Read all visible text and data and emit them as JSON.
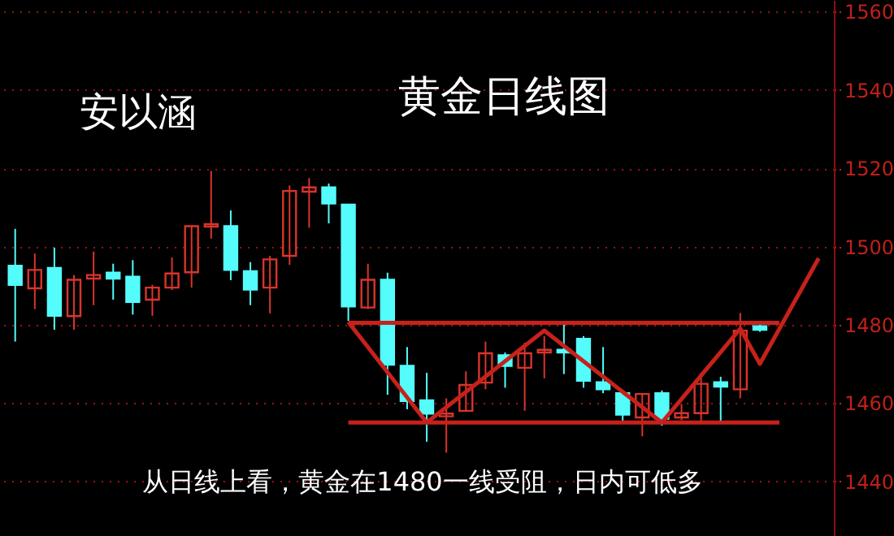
{
  "chart_data": {
    "type": "candlestick",
    "title": "黄金日线图",
    "annotations": [
      "安以涵",
      "从日线上看，黄金在1480一线受阻，日内可低多"
    ],
    "categories": [
      null,
      null,
      null,
      null,
      null,
      null,
      null,
      null,
      null,
      null,
      null,
      null,
      null,
      null,
      null,
      null,
      null,
      null,
      null,
      null,
      null,
      null,
      null,
      null,
      null,
      null,
      null,
      null,
      null,
      null,
      null,
      null,
      null,
      null,
      null,
      null,
      null,
      null,
      null,
      null,
      null,
      null
    ],
    "ohlc": [
      [
        1495.1,
        1504.5,
        1475.7,
        1490.2
      ],
      [
        1489.3,
        1498.2,
        1484.0,
        1494.0
      ],
      [
        1494.5,
        1499.7,
        1478.7,
        1482.3
      ],
      [
        1482.2,
        1492.7,
        1478.7,
        1491.5
      ],
      [
        1491.8,
        1498.7,
        1485.0,
        1492.7
      ],
      [
        1493.3,
        1495.6,
        1486.4,
        1491.8
      ],
      [
        1492.3,
        1496.5,
        1482.6,
        1485.8
      ],
      [
        1486.4,
        1490.2,
        1482.3,
        1489.5
      ],
      [
        1489.5,
        1497.2,
        1488.9,
        1493.1
      ],
      [
        1493.4,
        1505.2,
        1489.5,
        1505.2
      ],
      [
        1505.1,
        1519.3,
        1502.0,
        1505.7
      ],
      [
        1505.2,
        1509.2,
        1491.4,
        1494.0
      ],
      [
        1493.7,
        1496.0,
        1485.0,
        1489.0
      ],
      [
        1489.5,
        1497.6,
        1482.9,
        1496.7
      ],
      [
        1497.6,
        1515.6,
        1495.3,
        1514.2
      ],
      [
        1514.0,
        1517.5,
        1504.8,
        1515.1
      ],
      [
        1515.1,
        1516.1,
        1505.9,
        1511.0
      ],
      [
        1510.7,
        1510.7,
        1481.0,
        1484.7
      ],
      [
        1484.4,
        1495.6,
        1484.0,
        1491.5
      ],
      [
        1491.5,
        1493.3,
        1462.1,
        1469.8
      ],
      [
        1469.5,
        1474.3,
        1458.4,
        1460.5
      ],
      [
        1460.7,
        1467.7,
        1450.1,
        1457.3
      ],
      [
        1456.6,
        1461.2,
        1447.3,
        1457.3
      ],
      [
        1458.0,
        1468.1,
        1457.7,
        1464.6
      ],
      [
        1465.2,
        1475.7,
        1463.5,
        1472.7
      ],
      [
        1472.2,
        1472.9,
        1463.9,
        1469.5
      ],
      [
        1469.0,
        1475.4,
        1458.0,
        1472.7
      ],
      [
        1472.9,
        1477.1,
        1466.3,
        1473.6
      ],
      [
        1473.6,
        1480.0,
        1467.4,
        1472.9
      ],
      [
        1476.4,
        1477.1,
        1463.9,
        1465.7
      ],
      [
        1465.3,
        1474.3,
        1462.5,
        1463.5
      ],
      [
        1462.5,
        1463.2,
        1455.2,
        1457.0
      ],
      [
        1456.3,
        1462.3,
        1451.5,
        1462.3
      ],
      [
        1462.5,
        1463.2,
        1454.2,
        1456.0
      ],
      [
        1456.3,
        1459.8,
        1455.6,
        1457.4
      ],
      [
        1457.4,
        1467.7,
        1455.2,
        1464.9
      ],
      [
        1465.3,
        1466.7,
        1455.2,
        1464.2
      ],
      [
        1463.5,
        1483.0,
        1461.2,
        1478.5
      ],
      [
        1479.6,
        1480.0,
        1478.2,
        1478.7
      ],
      null,
      null,
      null
    ],
    "colors": [
      "#54fcfc",
      "#d9342c",
      "#54fcfc",
      "#d9342c",
      "#d9342c",
      "#54fcfc",
      "#54fcfc",
      "#d9342c",
      "#d9342c",
      "#d9342c",
      "#d9342c",
      "#54fcfc",
      "#54fcfc",
      "#d9342c",
      "#d9342c",
      "#d9342c",
      "#54fcfc",
      "#54fcfc",
      "#d9342c",
      "#54fcfc",
      "#54fcfc",
      "#54fcfc",
      "#d9342c",
      "#d9342c",
      "#d9342c",
      "#54fcfc",
      "#d9342c",
      "#d9342c",
      "#54fcfc",
      "#54fcfc",
      "#54fcfc",
      "#54fcfc",
      "#d9342c",
      "#54fcfc",
      "#d9342c",
      "#d9342c",
      "#54fcfc",
      "#d9342c",
      "#54fcfc",
      null,
      null,
      null
    ],
    "series": [
      {
        "type": "line",
        "color": "#c8211b",
        "values": [
          null,
          null,
          null,
          null,
          null,
          null,
          null,
          null,
          null,
          null,
          null,
          null,
          null,
          null,
          null,
          null,
          null,
          1480.7,
          null,
          null,
          null,
          1455,
          null,
          null,
          null,
          null,
          null,
          1478.5,
          null,
          null,
          null,
          null,
          null,
          1455,
          null,
          null,
          null,
          1479,
          1470,
          null,
          null,
          1497
        ]
      },
      {
        "type": "line",
        "color": "#c8211b",
        "values": [
          null,
          null,
          null,
          null,
          null,
          null,
          null,
          null,
          null,
          null,
          null,
          null,
          null,
          null,
          null,
          null,
          null,
          1480.5,
          1480.5,
          1480.5,
          1480.5,
          1480.5,
          1480.5,
          1480.5,
          1480.5,
          1480.5,
          1480.5,
          1480.5,
          1480.5,
          1480.5,
          1480.5,
          1480.5,
          1480.5,
          1480.5,
          1480.5,
          1480.5,
          1480.5,
          1480.5,
          1480.5,
          1480.5,
          null,
          null
        ]
      },
      {
        "type": "line",
        "color": "#c8211b",
        "values": [
          null,
          null,
          null,
          null,
          null,
          null,
          null,
          null,
          null,
          null,
          null,
          null,
          null,
          null,
          null,
          null,
          null,
          1455,
          1455,
          1455,
          1455,
          1455,
          1455,
          1455,
          1455,
          1455,
          1455,
          1455,
          1455,
          1455,
          1455,
          1455,
          1455,
          1455,
          1455,
          1455,
          1455,
          1455,
          1455,
          1455,
          null,
          null
        ]
      }
    ],
    "ylim": [
      1426,
      1563
    ],
    "yticks": [
      1440,
      1460,
      1480,
      1500,
      1520,
      1540,
      1560
    ],
    "grid": "y",
    "tick_labels": "y"
  }
}
